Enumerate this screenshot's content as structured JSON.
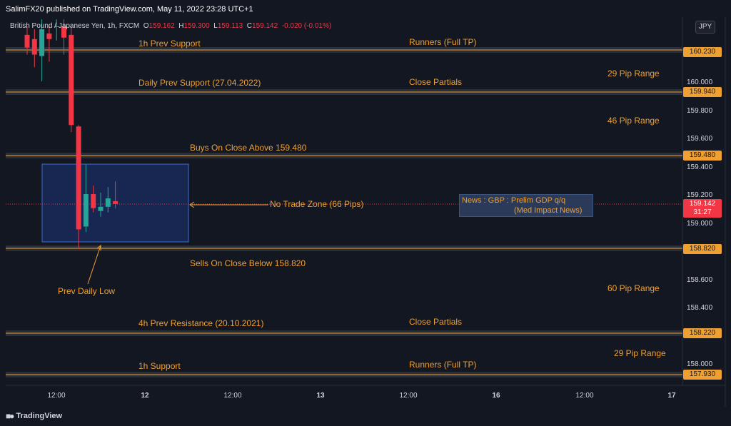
{
  "header": {
    "publish_line": "SalimFX20 published on TradingView.com, May 11, 2022 23:28 UTC+1",
    "symbol": "British Pound / Japanese Yen, 1h, FXCM",
    "open_label": "O",
    "open": "159.162",
    "high_label": "H",
    "high": "159.300",
    "low_label": "L",
    "low": "159.113",
    "close_label": "C",
    "close": "159.142",
    "change": "-0.020 (-0.01%)",
    "currency": "JPY"
  },
  "footer": {
    "logo_text": "TradingView"
  },
  "colors": {
    "background": "#131722",
    "level_line": "#f0a030",
    "up_candle": "#26a69a",
    "down_candle": "#f23645",
    "zone": "#2962ff"
  },
  "annotations": {
    "l1": "1h Prev Support",
    "l2": "Runners (Full TP)",
    "l3": "29 Pip Range",
    "l4": "Daily Prev Support (27.04.2022)",
    "l5": "Close Partials",
    "l6": "46 Pip Range",
    "l7": "Buys On Close Above 159.480",
    "l8": "No Trade Zone (66 Pips)",
    "l9": "Sells On Close Below 158.820",
    "l10": "Prev Daily Low",
    "l11": "60 Pip Range",
    "l12": "4h Prev Resistance (20.10.2021)",
    "l13": "Close Partials",
    "l14": "29 Pip Range",
    "l15": "1h Support",
    "l16": "Runners (Full TP)",
    "news_line1": "News : GBP : Prelim GDP q/q",
    "news_line2": "(Med Impact News)"
  },
  "price_tags": {
    "p1": "160.230",
    "p2": "159.940",
    "p3": "159.480",
    "p4": "158.820",
    "p5": "158.220",
    "p6": "157.930"
  },
  "current_price": {
    "value": "159.142",
    "countdown": "31:27"
  },
  "chart_data": {
    "type": "candlestick",
    "symbol": "GBPJPY",
    "timeframe": "1h",
    "y_ticks": [
      "160.000",
      "159.800",
      "159.600",
      "159.400",
      "159.200",
      "159.000",
      "158.600",
      "158.400",
      "158.000"
    ],
    "x_ticks": [
      "12:00",
      "12",
      "12:00",
      "13",
      "12:00",
      "16",
      "12:00",
      "17"
    ],
    "levels": [
      160.23,
      159.94,
      159.48,
      158.82,
      158.22,
      157.93
    ],
    "no_trade_zone": [
      158.82,
      159.48
    ],
    "candles": [
      {
        "o": 160.34,
        "h": 160.4,
        "l": 160.2,
        "c": 160.25
      },
      {
        "o": 160.31,
        "h": 160.38,
        "l": 160.11,
        "c": 160.2
      },
      {
        "o": 160.19,
        "h": 160.45,
        "l": 160.01,
        "c": 160.38
      },
      {
        "o": 160.35,
        "h": 160.4,
        "l": 160.15,
        "c": 160.31
      },
      {
        "o": 160.4,
        "h": 160.45,
        "l": 160.3,
        "c": 160.4
      },
      {
        "o": 160.4,
        "h": 160.45,
        "l": 160.2,
        "c": 160.32
      },
      {
        "o": 160.34,
        "h": 160.4,
        "l": 159.65,
        "c": 159.7
      },
      {
        "o": 159.69,
        "h": 159.7,
        "l": 158.82,
        "c": 158.96
      },
      {
        "o": 158.98,
        "h": 159.42,
        "l": 158.94,
        "c": 159.21
      },
      {
        "o": 159.21,
        "h": 159.27,
        "l": 159.08,
        "c": 159.11
      },
      {
        "o": 159.09,
        "h": 159.22,
        "l": 159.05,
        "c": 159.12
      },
      {
        "o": 159.12,
        "h": 159.26,
        "l": 159.08,
        "c": 159.18
      },
      {
        "o": 159.16,
        "h": 159.3,
        "l": 159.11,
        "c": 159.14
      }
    ]
  }
}
